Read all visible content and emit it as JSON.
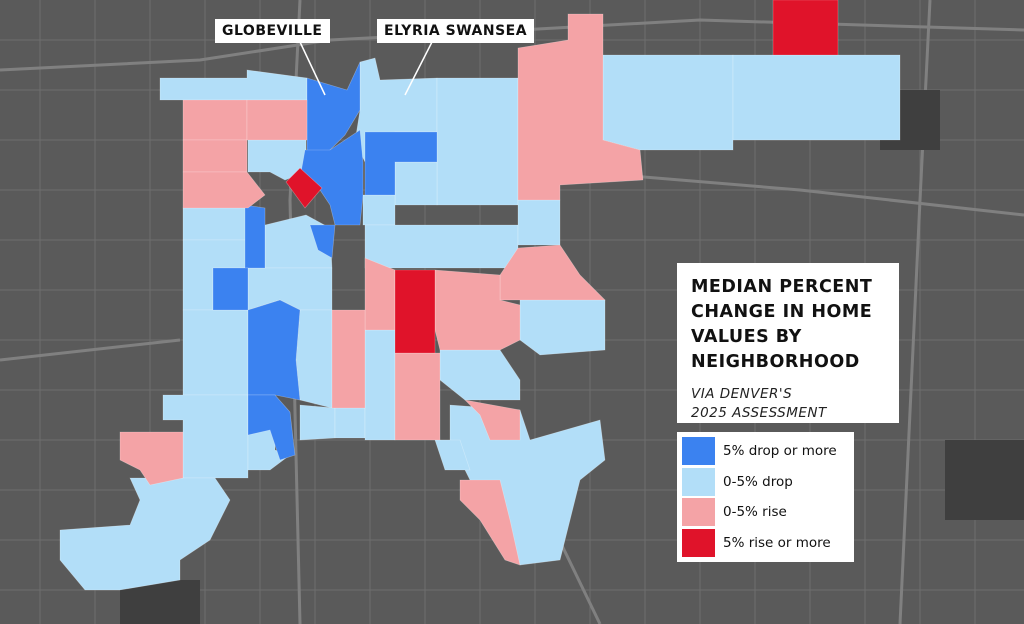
{
  "map": {
    "title": "MEDIAN PERCENT\nCHANGE IN HOME\nVALUES BY\nNEIGHBORHOOD",
    "subtitle": "VIA DENVER'S\n2025 ASSESSMENT",
    "callouts": {
      "globeville": "GLOBEVILLE",
      "elyria_swansea": "ELYRIA SWANSEA"
    },
    "colors": {
      "basemap": "#5a5a5a",
      "drop_5_plus": "#3b82f0",
      "drop_0_5": "#b2def8",
      "rise_0_5": "#f4a3a6",
      "rise_5_plus": "#e0132a"
    },
    "legend": [
      {
        "label": "5% drop or more",
        "color": "#3b82f0"
      },
      {
        "label": "0-5% drop",
        "color": "#b2def8"
      },
      {
        "label": "0-5% rise",
        "color": "#f4a3a6"
      },
      {
        "label": "5% rise or more",
        "color": "#e0132a"
      }
    ]
  }
}
